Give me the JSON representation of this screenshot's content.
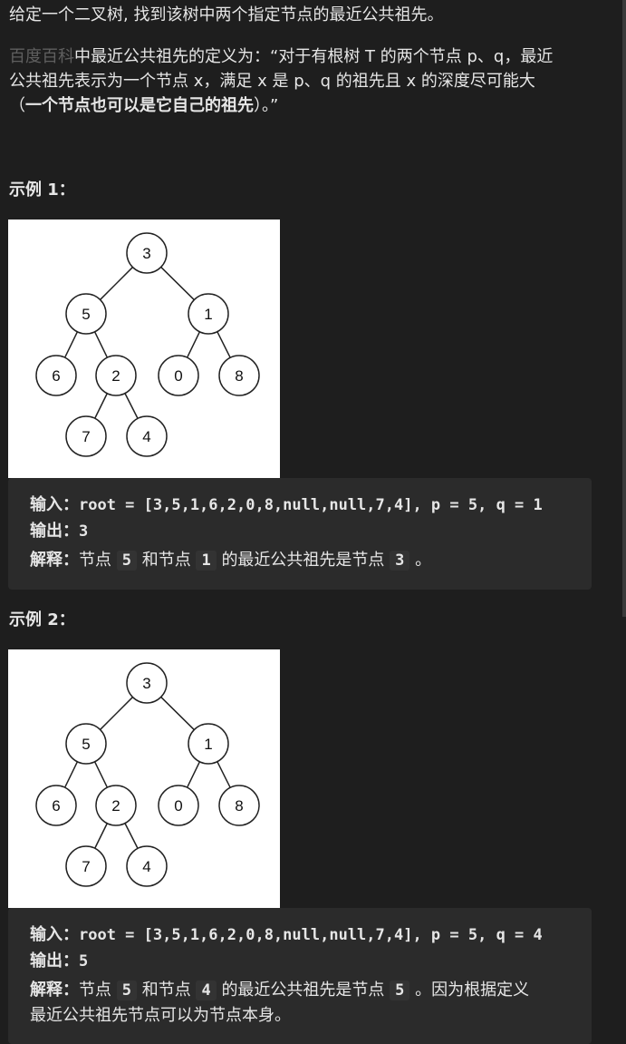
{
  "intro": {
    "line1": "给定一个二叉树, 找到该树中两个指定节点的最近公共祖先。",
    "link": "百度百科",
    "line2_rest": "中最近公共祖先的定义为：“对于有根树 T 的两个节点 p、q，最近",
    "line3": "公共祖先表示为一个节点 x，满足 x 是 p、q 的祖先且 x 的深度尽可能大",
    "line4_open": "（",
    "line4_bold": "一个节点也可以是它自己的祖先",
    "line4_close": "）。”"
  },
  "tree": {
    "nodes": [
      "3",
      "5",
      "1",
      "6",
      "2",
      "0",
      "8",
      "7",
      "4"
    ]
  },
  "examples": [
    {
      "heading": "示例 1：",
      "input_label": "输入：",
      "input_value": "root = [3,5,1,6,2,0,8,null,null,7,4], p = 5, q = 1",
      "output_label": "输出：",
      "output_value": "3",
      "explain_label": "解释：",
      "explain_t1": "节点",
      "explain_c1": "5",
      "explain_t2": "和节点",
      "explain_c2": "1",
      "explain_t3": "的最近公共祖先是节点",
      "explain_c3": "3",
      "explain_t4": "。"
    },
    {
      "heading": "示例 2：",
      "input_label": "输入：",
      "input_value": "root = [3,5,1,6,2,0,8,null,null,7,4], p = 5, q = 4",
      "output_label": "输出：",
      "output_value": "5",
      "explain_label": "解释：",
      "explain_t1": "节点",
      "explain_c1": "5",
      "explain_t2": "和节点",
      "explain_c2": "4",
      "explain_t3": "的最近公共祖先是节点",
      "explain_c3": "5",
      "explain_t4": "。因为根据定义",
      "explain_line2": "最近公共祖先节点可以为节点本身。"
    }
  ]
}
